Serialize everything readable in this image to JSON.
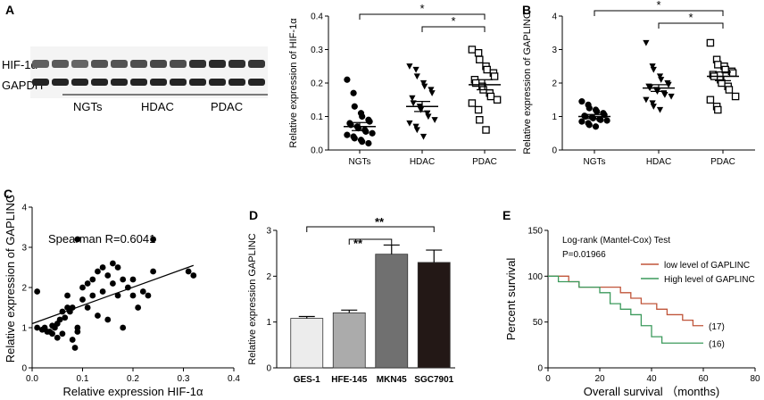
{
  "panel_letters": {
    "a": "A",
    "b": "B",
    "c": "C",
    "d": "D",
    "e": "E"
  },
  "blot": {
    "rows": [
      "HIF-1α",
      "GAPDH"
    ],
    "groups": [
      "NGTs",
      "HDAC",
      "PDAC"
    ],
    "band_intensity": {
      "HIF-1α": [
        0.45,
        0.5,
        0.4,
        0.55,
        0.55,
        0.6,
        0.65,
        0.6,
        0.85,
        0.9,
        0.85,
        0.8
      ],
      "GAPDH": [
        0.95,
        0.95,
        0.95,
        0.95,
        0.95,
        0.95,
        0.95,
        0.95,
        0.95,
        0.95,
        0.95,
        0.95
      ]
    }
  },
  "chart_data": [
    {
      "id": "A",
      "type": "scatter",
      "title": "",
      "xlabel": "",
      "ylabel": "Relative expression of HIF-1α",
      "categories": [
        "NGTs",
        "HDAC",
        "PDAC"
      ],
      "ylim": [
        0,
        0.4
      ],
      "yticks": [
        "0.0",
        "0.1",
        "0.2",
        "0.3",
        "0.4"
      ],
      "ytick_values": [
        0,
        0.1,
        0.2,
        0.3,
        0.4
      ],
      "markers": [
        "circle",
        "triangle-down",
        "square-open"
      ],
      "points": [
        [
          0.21,
          0.17,
          0.13,
          0.11,
          0.1,
          0.09,
          0.085,
          0.08,
          0.075,
          0.07,
          0.065,
          0.06,
          0.055,
          0.05,
          0.045,
          0.04,
          0.035,
          0.03,
          0.025,
          0.02
        ],
        [
          0.25,
          0.24,
          0.22,
          0.2,
          0.19,
          0.18,
          0.17,
          0.155,
          0.14,
          0.13,
          0.12,
          0.11,
          0.1,
          0.09,
          0.08,
          0.07,
          0.06,
          0.04
        ],
        [
          0.3,
          0.29,
          0.27,
          0.25,
          0.24,
          0.23,
          0.22,
          0.21,
          0.2,
          0.19,
          0.18,
          0.17,
          0.16,
          0.15,
          0.14,
          0.12,
          0.09,
          0.06
        ]
      ],
      "means": [
        0.07,
        0.13,
        0.195
      ],
      "sem": [
        0.012,
        0.015,
        0.015
      ],
      "significance": [
        {
          "from": 0,
          "to": 2,
          "label": "*"
        },
        {
          "from": 1,
          "to": 2,
          "label": "*"
        }
      ]
    },
    {
      "id": "B",
      "type": "scatter",
      "title": "",
      "xlabel": "",
      "ylabel": "Relative expression of GAPLINC",
      "categories": [
        "NGTs",
        "HDAC",
        "PDAC"
      ],
      "ylim": [
        0,
        4
      ],
      "yticks": [
        "0",
        "1",
        "2",
        "3",
        "4"
      ],
      "ytick_values": [
        0,
        1,
        2,
        3,
        4
      ],
      "markers": [
        "circle",
        "triangle-down",
        "square-open"
      ],
      "points": [
        [
          1.45,
          1.35,
          1.25,
          1.2,
          1.15,
          1.1,
          1.05,
          1.02,
          1.0,
          0.98,
          0.95,
          0.92,
          0.9,
          0.88,
          0.85,
          0.8,
          0.75,
          0.7
        ],
        [
          3.2,
          2.5,
          2.4,
          2.2,
          2.1,
          2.0,
          1.95,
          1.9,
          1.85,
          1.8,
          1.75,
          1.7,
          1.65,
          1.6,
          1.5,
          1.4,
          1.3,
          1.2
        ],
        [
          3.2,
          2.7,
          2.55,
          2.5,
          2.4,
          2.35,
          2.3,
          2.25,
          2.2,
          2.1,
          2.0,
          1.9,
          1.8,
          1.6,
          1.5,
          1.3,
          1.2
        ]
      ],
      "means": [
        1.0,
        1.85,
        2.2
      ],
      "sem": [
        0.06,
        0.1,
        0.13
      ],
      "significance": [
        {
          "from": 0,
          "to": 2,
          "label": "*"
        },
        {
          "from": 1,
          "to": 2,
          "label": "*"
        }
      ]
    },
    {
      "id": "C",
      "type": "scatter",
      "title": "",
      "xlabel": "Relative expression HIF-1α",
      "ylabel": "Relative expression of GAPLINC",
      "annotation": "Spearman R=0.6041",
      "xlim": [
        0,
        0.4
      ],
      "xticks": [
        "0.0",
        "0.1",
        "0.2",
        "0.3",
        "0.4"
      ],
      "xtick_values": [
        0,
        0.1,
        0.2,
        0.3,
        0.4
      ],
      "ylim": [
        0,
        4
      ],
      "yticks": [
        "0",
        "1",
        "2",
        "3",
        "4"
      ],
      "ytick_values": [
        0,
        1,
        2,
        3,
        4
      ],
      "x": [
        0.01,
        0.01,
        0.02,
        0.025,
        0.03,
        0.035,
        0.04,
        0.04,
        0.045,
        0.05,
        0.05,
        0.055,
        0.06,
        0.06,
        0.065,
        0.07,
        0.07,
        0.075,
        0.08,
        0.08,
        0.085,
        0.09,
        0.09,
        0.09,
        0.1,
        0.1,
        0.11,
        0.11,
        0.12,
        0.12,
        0.13,
        0.13,
        0.14,
        0.14,
        0.15,
        0.15,
        0.16,
        0.16,
        0.17,
        0.17,
        0.18,
        0.18,
        0.19,
        0.2,
        0.2,
        0.21,
        0.22,
        0.23,
        0.24,
        0.24,
        0.31,
        0.32
      ],
      "y": [
        1.9,
        1.0,
        0.95,
        1.0,
        0.9,
        0.9,
        1.05,
        0.85,
        1.0,
        1.1,
        0.75,
        1.2,
        1.4,
        0.85,
        1.25,
        1.5,
        1.8,
        1.4,
        1.5,
        0.7,
        0.5,
        3.2,
        0.9,
        1.0,
        2.0,
        1.7,
        2.1,
        1.5,
        2.2,
        1.8,
        2.4,
        1.3,
        2.5,
        1.9,
        2.3,
        1.2,
        2.6,
        2.1,
        2.5,
        1.8,
        2.2,
        1.0,
        2.0,
        2.2,
        1.8,
        1.5,
        1.9,
        1.8,
        3.2,
        2.4,
        2.4,
        2.3
      ],
      "fit": {
        "x": [
          0,
          0.32
        ],
        "y": [
          1.1,
          2.55
        ]
      }
    },
    {
      "id": "D",
      "type": "bar",
      "title": "",
      "xlabel": "",
      "ylabel": "Relative expression GAPLINC",
      "categories": [
        "GES-1",
        "HFE-145",
        "MKN45",
        "SGC7901"
      ],
      "values": [
        1.08,
        1.2,
        2.48,
        2.3
      ],
      "errors": [
        0.04,
        0.06,
        0.2,
        0.27
      ],
      "bar_colors": [
        "#ececec",
        "#ababab",
        "#707070",
        "#231816"
      ],
      "ylim": [
        0,
        3
      ],
      "yticks": [
        "0",
        "1",
        "2",
        "3"
      ],
      "ytick_values": [
        0,
        1,
        2,
        3
      ],
      "significance": [
        {
          "from": 0,
          "to": 3,
          "label": "**"
        },
        {
          "from": 1,
          "to": 2,
          "label": "**"
        }
      ]
    },
    {
      "id": "E",
      "type": "line",
      "title": "Log-rank (Mantel-Cox) Test",
      "subtitle": "P=0.01966",
      "xlabel": "Overall survival （months)",
      "ylabel": "Percent survival",
      "xlim": [
        0,
        80
      ],
      "xticks": [
        "0",
        "20",
        "40",
        "60",
        "80"
      ],
      "xtick_values": [
        0,
        20,
        40,
        60,
        80
      ],
      "ylim": [
        0,
        150
      ],
      "yticks": [
        "0",
        "50",
        "100",
        "150"
      ],
      "ytick_values": [
        0,
        50,
        100,
        150
      ],
      "series": [
        {
          "name": "low level of GAPLINC",
          "color": "#c0553a",
          "end_label": "(17)",
          "x": [
            0,
            8,
            8,
            12,
            12,
            28,
            28,
            32,
            32,
            36,
            36,
            42,
            42,
            46,
            46,
            52,
            52,
            56,
            56,
            60
          ],
          "y": [
            100,
            100,
            94,
            94,
            88,
            88,
            82,
            82,
            76,
            76,
            70,
            70,
            64,
            64,
            58,
            58,
            52,
            52,
            46,
            46
          ]
        },
        {
          "name": "High level of GAPLINC",
          "color": "#3c9a5c",
          "end_label": "(16)",
          "x": [
            0,
            4,
            4,
            12,
            12,
            20,
            20,
            24,
            24,
            28,
            28,
            32,
            32,
            36,
            36,
            40,
            40,
            44,
            44,
            60
          ],
          "y": [
            100,
            100,
            94,
            94,
            88,
            88,
            82,
            82,
            70,
            70,
            64,
            64,
            58,
            58,
            46,
            46,
            34,
            34,
            27,
            27
          ]
        }
      ],
      "legend_position": "top-right"
    }
  ]
}
